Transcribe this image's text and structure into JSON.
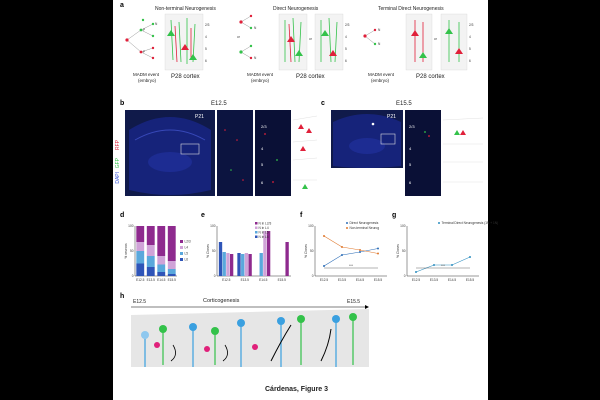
{
  "panel_labels": {
    "a": "a",
    "b": "b",
    "c": "c",
    "d": "d",
    "e": "e",
    "f": "f",
    "g": "g",
    "h": "h"
  },
  "panel_a": {
    "col1_title": "Non-terminal Neurogenesis",
    "col2_title": "Direct Neurogenesis",
    "col3_title": "Terminal Direct Neurogenesis",
    "madm": "MADM event",
    "embryo": "(embryo)",
    "cortex": "P28 cortex",
    "or": "or",
    "P": "P",
    "N": "N",
    "layers": [
      "2/3",
      "4",
      "5",
      "6"
    ]
  },
  "panel_b": {
    "title": "E12.5",
    "age": "P21",
    "layers": [
      "2/3",
      "4",
      "5",
      "6"
    ]
  },
  "panel_c": {
    "title": "E15.5",
    "age": "P21",
    "layers": [
      "2/3",
      "4",
      "5",
      "6"
    ]
  },
  "stain_labels": {
    "rfp": "RFP",
    "gfp": "GFP",
    "dapi": "DAPI"
  },
  "colors": {
    "rfp": "#e0203a",
    "gfp": "#33c24a",
    "dapi": "#1c2a90",
    "l23": "#8e2a8e",
    "l4": "#d0a3d8",
    "l5": "#5aa8dc",
    "l6": "#2f55b8"
  },
  "caption": "Cárdenas, Figure 3",
  "panel_h": {
    "title": "Corticogenesis",
    "start": "E12.5",
    "end": "E15.5"
  },
  "chart_data": [
    {
      "panel": "d",
      "type": "bar",
      "stacked": true,
      "categories": [
        "E12.5",
        "E13.5",
        "E14.5",
        "E15.5"
      ],
      "ylabel": "% neurons",
      "ylim": [
        0,
        100
      ],
      "series": [
        {
          "name": "L6",
          "values": [
            25,
            18,
            8,
            4
          ]
        },
        {
          "name": "L5",
          "values": [
            25,
            22,
            15,
            10
          ]
        },
        {
          "name": "L4",
          "values": [
            18,
            22,
            17,
            16
          ]
        },
        {
          "name": "L2/3",
          "values": [
            32,
            38,
            60,
            70
          ]
        }
      ],
      "legend": "right"
    },
    {
      "panel": "e",
      "type": "bar",
      "categories": [
        "E12.5",
        "E13.5",
        "E14.5",
        "E15.5"
      ],
      "ylabel": "% Clones",
      "ylim": [
        0,
        100
      ],
      "series": [
        {
          "name": "N in L6",
          "values": [
            68,
            46,
            0,
            0
          ]
        },
        {
          "name": "N in L5",
          "values": [
            48,
            44,
            46,
            0
          ]
        },
        {
          "name": "N in L4",
          "values": [
            46,
            46,
            90,
            0
          ]
        },
        {
          "name": "N in L2/3",
          "values": [
            44,
            44,
            90,
            68
          ]
        }
      ],
      "legend": "top-right"
    },
    {
      "panel": "f",
      "type": "line",
      "x": [
        "E12.5",
        "E13.5",
        "E14.5",
        "E15.5"
      ],
      "ylabel": "% Clones",
      "ylim": [
        0,
        100
      ],
      "series": [
        {
          "name": "Direct Neurogenesis",
          "values": [
            20,
            42,
            48,
            55
          ]
        },
        {
          "name": "Non-terminal Neurog",
          "values": [
            80,
            58,
            52,
            45
          ]
        }
      ],
      "annotation": "***",
      "legend": "top-right"
    },
    {
      "panel": "g",
      "type": "line",
      "x": [
        "E12.5",
        "E13.5",
        "E14.5",
        "E15.5"
      ],
      "ylabel": "% Clones",
      "ylim": [
        0,
        100
      ],
      "series": [
        {
          "name": "Terminal Direct Neurogenesis (1N + 1N)",
          "values": [
            8,
            22,
            22,
            38
          ]
        }
      ],
      "annotation": "***",
      "legend": "top-right"
    }
  ]
}
